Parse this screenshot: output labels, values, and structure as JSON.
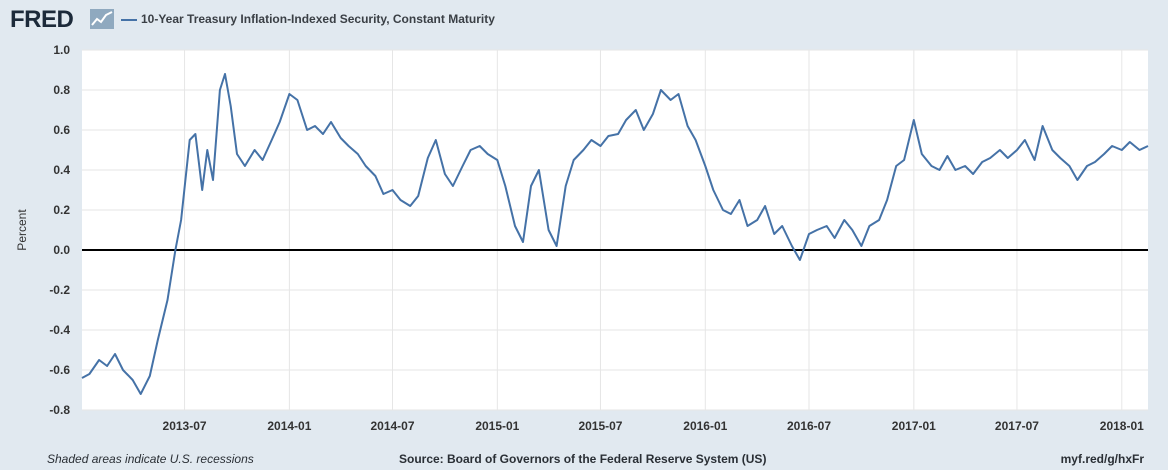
{
  "header": {
    "logo_text": "FRED",
    "logo_icon": "chart-line-icon"
  },
  "footer": {
    "left": "Shaded areas indicate U.S. recessions",
    "center": "Source: Board of Governors of the Federal Reserve System (US)",
    "right": "myf.red/g/hxFr"
  },
  "colors": {
    "series": "#4572a7",
    "zero_line": "#000000",
    "grid": "#e6e6e6",
    "background": "#e1e9f0",
    "plot": "#ffffff"
  },
  "chart_data": {
    "type": "line",
    "title": "",
    "xlabel": "",
    "ylabel": "Percent",
    "ylim": [
      -0.8,
      1.0
    ],
    "yticks": [
      1.0,
      0.8,
      0.6,
      0.4,
      0.2,
      0.0,
      -0.2,
      -0.4,
      -0.6,
      -0.8
    ],
    "ytick_labels": [
      "1.0",
      "0.8",
      "0.6",
      "0.4",
      "0.2",
      "0.0",
      "-0.2",
      "-0.4",
      "-0.6",
      "-0.8"
    ],
    "xlim": [
      "2013-01-02",
      "2018-02-16"
    ],
    "xticks": [
      "2013-07-01",
      "2014-01-01",
      "2014-07-01",
      "2015-01-01",
      "2015-07-01",
      "2016-01-01",
      "2016-07-01",
      "2017-01-01",
      "2017-07-01",
      "2018-01-01"
    ],
    "xtick_labels": [
      "2013-07",
      "2014-01",
      "2014-07",
      "2015-01",
      "2015-07",
      "2016-01",
      "2016-07",
      "2017-01",
      "2017-07",
      "2018-01"
    ],
    "grid": true,
    "legend_position": "top-left",
    "series": [
      {
        "name": "10-Year Treasury Inflation-Indexed Security, Constant Maturity",
        "color": "#4572a7",
        "x": [
          "2013-01-02",
          "2013-01-15",
          "2013-02-01",
          "2013-02-15",
          "2013-03-01",
          "2013-03-15",
          "2013-04-01",
          "2013-04-15",
          "2013-05-01",
          "2013-05-15",
          "2013-06-01",
          "2013-06-15",
          "2013-06-25",
          "2013-07-10",
          "2013-07-20",
          "2013-08-01",
          "2013-08-10",
          "2013-08-20",
          "2013-09-01",
          "2013-09-10",
          "2013-09-20",
          "2013-10-01",
          "2013-10-15",
          "2013-11-01",
          "2013-11-15",
          "2013-12-01",
          "2013-12-15",
          "2014-01-01",
          "2014-01-15",
          "2014-02-01",
          "2014-02-15",
          "2014-03-01",
          "2014-03-15",
          "2014-04-01",
          "2014-04-15",
          "2014-05-01",
          "2014-05-15",
          "2014-06-01",
          "2014-06-15",
          "2014-07-01",
          "2014-07-15",
          "2014-08-01",
          "2014-08-15",
          "2014-09-01",
          "2014-09-15",
          "2014-10-01",
          "2014-10-15",
          "2014-11-01",
          "2014-11-15",
          "2014-12-01",
          "2014-12-15",
          "2015-01-01",
          "2015-01-15",
          "2015-02-01",
          "2015-02-15",
          "2015-03-01",
          "2015-03-15",
          "2015-04-01",
          "2015-04-15",
          "2015-05-01",
          "2015-05-15",
          "2015-06-01",
          "2015-06-15",
          "2015-07-01",
          "2015-07-15",
          "2015-08-01",
          "2015-08-15",
          "2015-09-01",
          "2015-09-15",
          "2015-10-01",
          "2015-10-15",
          "2015-11-01",
          "2015-11-15",
          "2015-12-01",
          "2015-12-15",
          "2016-01-01",
          "2016-01-15",
          "2016-02-01",
          "2016-02-15",
          "2016-03-01",
          "2016-03-15",
          "2016-04-01",
          "2016-04-15",
          "2016-05-01",
          "2016-05-15",
          "2016-06-01",
          "2016-06-15",
          "2016-07-01",
          "2016-07-15",
          "2016-08-01",
          "2016-08-15",
          "2016-09-01",
          "2016-09-15",
          "2016-10-01",
          "2016-10-15",
          "2016-11-01",
          "2016-11-15",
          "2016-12-01",
          "2016-12-15",
          "2017-01-01",
          "2017-01-15",
          "2017-02-01",
          "2017-02-15",
          "2017-03-01",
          "2017-03-15",
          "2017-04-01",
          "2017-04-15",
          "2017-05-01",
          "2017-05-15",
          "2017-06-01",
          "2017-06-15",
          "2017-07-01",
          "2017-07-15",
          "2017-08-01",
          "2017-08-15",
          "2017-09-01",
          "2017-09-15",
          "2017-10-01",
          "2017-10-15",
          "2017-11-01",
          "2017-11-15",
          "2017-12-01",
          "2017-12-15",
          "2018-01-01",
          "2018-01-15",
          "2018-02-01",
          "2018-02-16"
        ],
        "values": [
          -0.64,
          -0.62,
          -0.55,
          -0.58,
          -0.52,
          -0.6,
          -0.65,
          -0.72,
          -0.63,
          -0.45,
          -0.25,
          0.0,
          0.15,
          0.55,
          0.58,
          0.3,
          0.5,
          0.35,
          0.8,
          0.88,
          0.72,
          0.48,
          0.42,
          0.5,
          0.45,
          0.55,
          0.64,
          0.78,
          0.75,
          0.6,
          0.62,
          0.58,
          0.64,
          0.56,
          0.52,
          0.48,
          0.42,
          0.37,
          0.28,
          0.3,
          0.25,
          0.22,
          0.27,
          0.46,
          0.55,
          0.38,
          0.32,
          0.42,
          0.5,
          0.52,
          0.48,
          0.45,
          0.32,
          0.12,
          0.04,
          0.32,
          0.4,
          0.1,
          0.02,
          0.32,
          0.45,
          0.5,
          0.55,
          0.52,
          0.57,
          0.58,
          0.65,
          0.7,
          0.6,
          0.68,
          0.8,
          0.75,
          0.78,
          0.62,
          0.55,
          0.42,
          0.3,
          0.2,
          0.18,
          0.25,
          0.12,
          0.15,
          0.22,
          0.08,
          0.12,
          0.02,
          -0.05,
          0.08,
          0.1,
          0.12,
          0.06,
          0.15,
          0.1,
          0.02,
          0.12,
          0.15,
          0.25,
          0.42,
          0.45,
          0.65,
          0.48,
          0.42,
          0.4,
          0.47,
          0.4,
          0.42,
          0.38,
          0.44,
          0.46,
          0.5,
          0.46,
          0.5,
          0.55,
          0.45,
          0.62,
          0.5,
          0.46,
          0.42,
          0.35,
          0.42,
          0.44,
          0.48,
          0.52,
          0.5,
          0.54,
          0.5,
          0.52
        ]
      }
    ]
  }
}
